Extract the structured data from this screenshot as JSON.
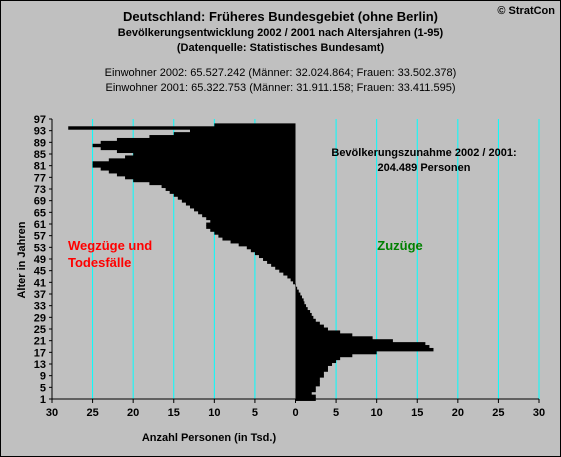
{
  "header": {
    "title": "Deutschland: Früheres Bundesgebiet (ohne Berlin)",
    "subtitle1": "Bevölkerungsentwicklung 2002 / 2001  nach Altersjahren (1-95)",
    "subtitle2": "(Datenquelle: Statistisches Bundesamt)",
    "info2002": "Einwohner 2002: 65.527.242  (Männer: 32.024.864; Frauen: 33.502.378)",
    "info2001": "Einwohner 2001: 65.322.753  (Männer: 31.911.158; Frauen: 33.411.595)",
    "copyright": "© StratCon"
  },
  "colors": {
    "background": "#c0c0c0",
    "grid": "#00ffff",
    "bars": "#000000",
    "left_label": "#ff0000",
    "right_label": "#008000"
  },
  "chart_data": {
    "type": "bar",
    "orientation": "horizontal",
    "title": "Deutschland: Früheres Bundesgebiet (ohne Berlin)",
    "xlabel": "Anzahl Personen (in Tsd.)",
    "ylabel": "Alter in Jahren",
    "xlim": [
      -30,
      30
    ],
    "ylim": [
      1,
      97
    ],
    "x_ticks": [
      -30,
      -25,
      -20,
      -15,
      -10,
      -5,
      0,
      5,
      10,
      15,
      20,
      25,
      30
    ],
    "x_tick_labels": [
      "30",
      "25",
      "20",
      "15",
      "10",
      "5",
      "0",
      "5",
      "10",
      "15",
      "20",
      "25",
      "30"
    ],
    "y_ticks": [
      1,
      5,
      9,
      13,
      17,
      21,
      25,
      29,
      33,
      37,
      41,
      45,
      49,
      53,
      57,
      61,
      65,
      69,
      73,
      77,
      81,
      85,
      89,
      93,
      97
    ],
    "grid": true,
    "annotation_title": "Bevölkerungszunahme 2002 / 2001:",
    "annotation_value": "204.489 Personen",
    "left_label_line1": "Wegzüge und",
    "left_label_line2": "Todesfälle",
    "right_label": "Zuzüge",
    "ages": [
      1,
      2,
      3,
      4,
      5,
      6,
      7,
      8,
      9,
      10,
      11,
      12,
      13,
      14,
      15,
      16,
      17,
      18,
      19,
      20,
      21,
      22,
      23,
      24,
      25,
      26,
      27,
      28,
      29,
      30,
      31,
      32,
      33,
      34,
      35,
      36,
      37,
      38,
      39,
      40,
      41,
      42,
      43,
      44,
      45,
      46,
      47,
      48,
      49,
      50,
      51,
      52,
      53,
      54,
      55,
      56,
      57,
      58,
      59,
      60,
      61,
      62,
      63,
      64,
      65,
      66,
      67,
      68,
      69,
      70,
      71,
      72,
      73,
      74,
      75,
      76,
      77,
      78,
      79,
      80,
      81,
      82,
      83,
      84,
      85,
      86,
      87,
      88,
      89,
      90,
      91,
      92,
      93,
      94,
      95
    ],
    "values": [
      2.5,
      2.5,
      2,
      2.5,
      2.5,
      3,
      3,
      3,
      3.5,
      3.5,
      4,
      4,
      4.5,
      5,
      5.5,
      7,
      10,
      17,
      16.5,
      16,
      12,
      9.5,
      7,
      5.5,
      4,
      3.5,
      3,
      2.5,
      2.2,
      2,
      1.8,
      1.5,
      1.3,
      1.1,
      1,
      0.8,
      0.6,
      0.4,
      0.2,
      0,
      -0.3,
      -0.6,
      -1,
      -1.5,
      -2,
      -2.5,
      -3,
      -3.5,
      -4,
      -4.5,
      -5,
      -5.5,
      -6,
      -7,
      -8,
      -9,
      -9.5,
      -10,
      -10.5,
      -11,
      -11,
      -10.5,
      -11,
      -11.5,
      -12,
      -12.5,
      -13,
      -13.5,
      -14,
      -14.5,
      -15,
      -15.5,
      -16,
      -16.5,
      -18,
      -20,
      -21,
      -22,
      -23,
      -24,
      -25,
      -25,
      -23,
      -21,
      -20,
      -22,
      -24,
      -25,
      -24,
      -22,
      -18,
      -15,
      -13,
      -28,
      -10
    ]
  }
}
